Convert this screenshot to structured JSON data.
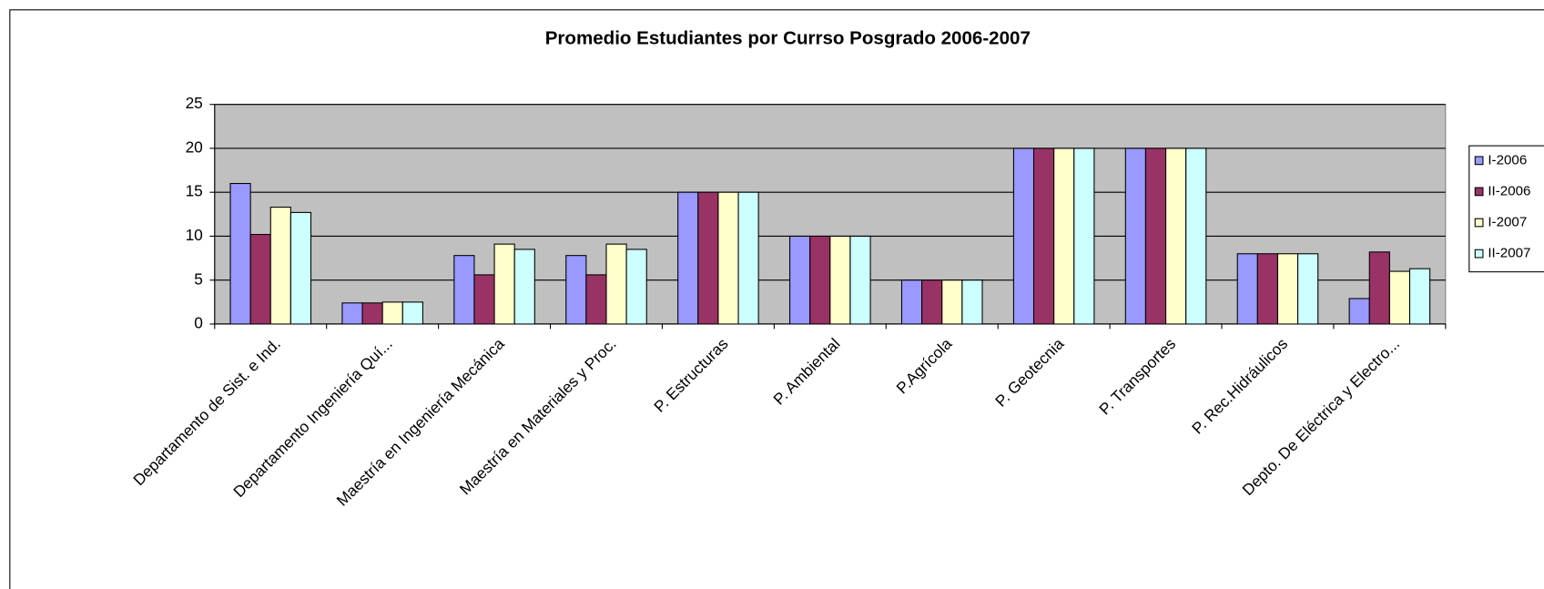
{
  "chart_data": {
    "type": "bar",
    "title": "Promedio Estudiantes por Currso Posgrado 2006-2007",
    "categories": [
      "Departamento de Sist. e Ind.",
      "Departamento Ingeniería Quí...",
      "Maestría en Ingeniería Mecánica",
      "Maestría en Materiales y Proc.",
      "P. Estructuras",
      "P. Ambiental",
      "P.Agrícola",
      "P. Geotecnia",
      "P. Transportes",
      "P. Rec.Hidráulicos",
      "Depto. De Eléctrica y Electro..."
    ],
    "series": [
      {
        "name": "I-2006",
        "color": "#9999ff",
        "values": [
          16,
          2.4,
          7.8,
          7.8,
          15,
          10,
          5,
          20,
          20,
          8,
          2.9
        ]
      },
      {
        "name": "II-2006",
        "color": "#993366",
        "values": [
          10.2,
          2.4,
          5.6,
          5.6,
          15,
          10,
          5,
          20,
          20,
          8,
          8.2
        ]
      },
      {
        "name": "I-2007",
        "color": "#ffffcc",
        "values": [
          13.3,
          2.5,
          9.1,
          9.1,
          15,
          10,
          5,
          20,
          20,
          8,
          6
        ]
      },
      {
        "name": "II-2007",
        "color": "#ccffff",
        "values": [
          12.7,
          2.5,
          8.5,
          8.5,
          15,
          10,
          5,
          20,
          20,
          8,
          6.3
        ]
      }
    ],
    "ylim": [
      0,
      25
    ],
    "yticks": [
      0,
      5,
      10,
      15,
      20,
      25
    ],
    "grid": true,
    "legend": "right",
    "plot_background": "#c0c0c0"
  }
}
